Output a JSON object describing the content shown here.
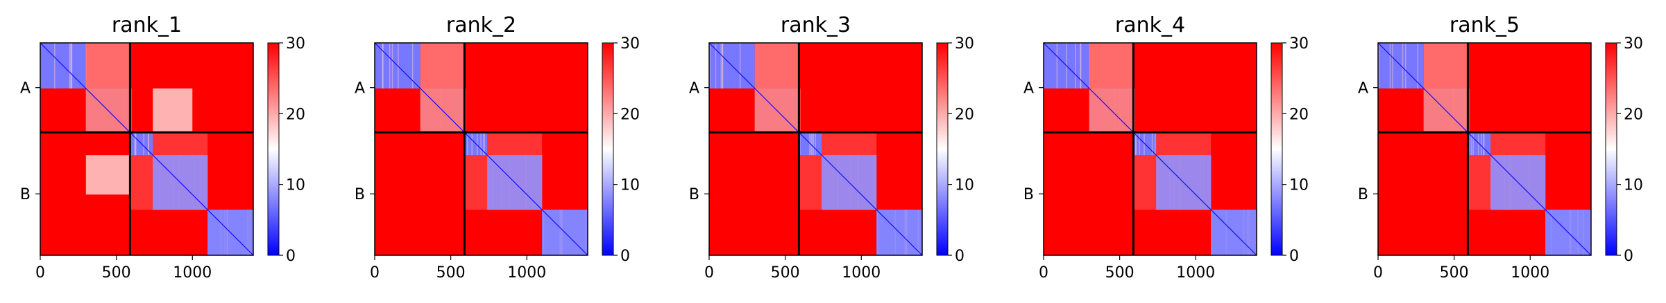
{
  "chart_data": {
    "type": "heatmap",
    "colormap": {
      "low": "#0000ff",
      "mid": "#ffffff",
      "high": "#ff0000"
    },
    "color_range": [
      0,
      30
    ],
    "colorbar_ticks": [
      "0",
      "10",
      "20",
      "30"
    ],
    "x_ticks": [
      {
        "value": 0,
        "label": "0"
      },
      {
        "value": 500,
        "label": "500"
      },
      {
        "value": 1000,
        "label": "1000"
      }
    ],
    "x_range": [
      0,
      1400
    ],
    "chain_break": 590,
    "y_chain_labels": [
      "A",
      "B"
    ],
    "panels": [
      {
        "title": "rank_1",
        "interchain_pae": "mixed"
      },
      {
        "title": "rank_2",
        "interchain_pae": "high"
      },
      {
        "title": "rank_3",
        "interchain_pae": "high"
      },
      {
        "title": "rank_4",
        "interchain_pae": "high"
      },
      {
        "title": "rank_5",
        "interchain_pae": "high"
      }
    ],
    "domains": [
      {
        "start": 0,
        "end": 300
      },
      {
        "start": 300,
        "end": 590
      },
      {
        "start": 590,
        "end": 740
      },
      {
        "start": 740,
        "end": 1100
      },
      {
        "start": 1100,
        "end": 1400
      }
    ]
  }
}
